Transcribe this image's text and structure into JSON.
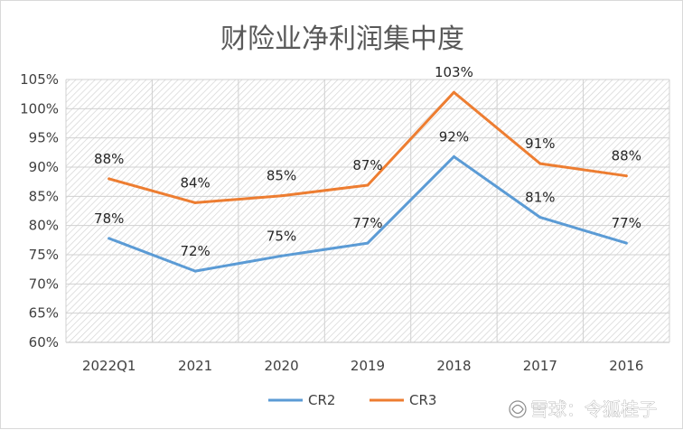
{
  "chart_data": {
    "type": "line",
    "title": "财险业净利润集中度",
    "categories": [
      "2022Q1",
      "2021",
      "2020",
      "2019",
      "2018",
      "2017",
      "2016"
    ],
    "ylim": [
      60,
      105
    ],
    "yticks": [
      "60%",
      "65%",
      "70%",
      "75%",
      "80%",
      "85%",
      "90%",
      "95%",
      "100%",
      "105%"
    ],
    "ytick_values": [
      60,
      65,
      70,
      75,
      80,
      85,
      90,
      95,
      100,
      105
    ],
    "grid": true,
    "legend_position": "bottom",
    "series": [
      {
        "name": "CR2",
        "color": "#5b9bd5",
        "values": [
          77.8,
          72.2,
          74.8,
          77.0,
          91.8,
          81.4,
          77.0
        ],
        "labels": [
          "78%",
          "72%",
          "75%",
          "77%",
          "92%",
          "81%",
          "77%"
        ]
      },
      {
        "name": "CR3",
        "color": "#ed7d31",
        "values": [
          88.0,
          83.9,
          85.1,
          86.9,
          102.8,
          90.6,
          88.5
        ],
        "labels": [
          "88%",
          "84%",
          "85%",
          "87%",
          "103%",
          "91%",
          "88%"
        ]
      }
    ]
  },
  "watermark": {
    "text": "雪球：令狐桂子",
    "icon": "snowball-logo-icon"
  }
}
